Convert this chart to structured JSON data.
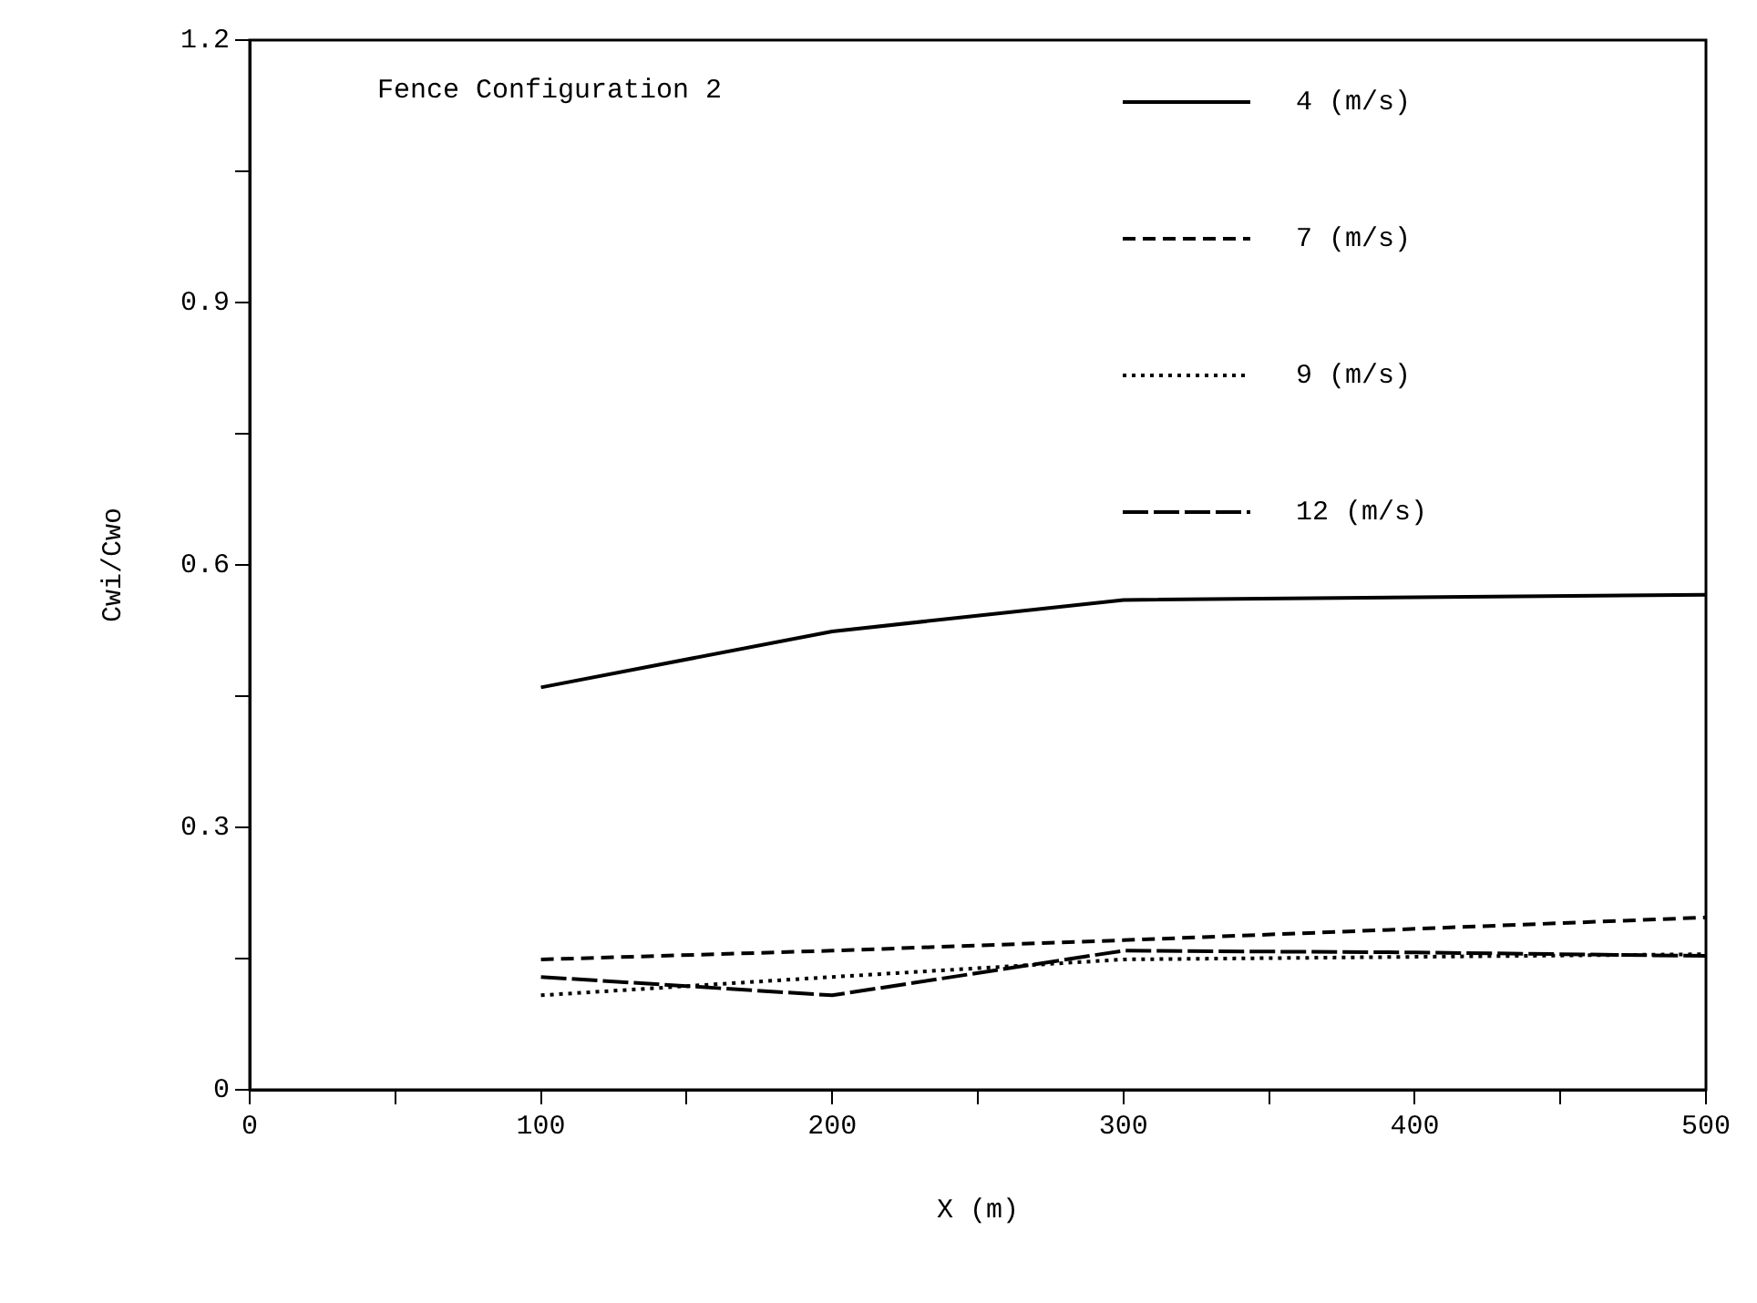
{
  "chart_data": {
    "type": "line",
    "xlabel": "X (m)",
    "ylabel": "Cwi/Cwo",
    "annotations": [
      "Fence Configuration 2"
    ],
    "x": [
      100,
      200,
      300,
      500
    ],
    "series": [
      {
        "name": "4 (m/s)",
        "color": "#000000",
        "line_style": "solid",
        "values": [
          0.46,
          0.524,
          0.56,
          0.566
        ]
      },
      {
        "name": "7 (m/s)",
        "color": "#000000",
        "line_style": "dashed",
        "values": [
          0.149,
          0.159,
          0.171,
          0.197
        ]
      },
      {
        "name": "9 (m/s)",
        "color": "#000000",
        "line_style": "dotted",
        "values": [
          0.108,
          0.129,
          0.149,
          0.155
        ]
      },
      {
        "name": "12 (m/s)",
        "color": "#000000",
        "line_style": "dashed",
        "x": [
          100,
          200,
          300,
          400,
          500
        ],
        "values": [
          0.129,
          0.108,
          0.159,
          0.157,
          0.153
        ]
      }
    ],
    "xlim": [
      0,
      500
    ],
    "xticks": [
      0,
      {
        "value": 50,
        "label": null
      },
      100,
      {
        "value": 150,
        "label": null
      },
      200,
      {
        "value": 250,
        "label": null
      },
      300,
      {
        "value": 350,
        "label": null
      },
      400,
      {
        "value": 450,
        "label": null
      },
      500
    ],
    "ylim": [
      0,
      1.2
    ],
    "yticks": [
      0,
      {
        "value": 0.15,
        "label": null
      },
      0.3,
      {
        "value": 0.45,
        "label": null
      },
      0.6,
      {
        "value": 0.75,
        "label": null
      },
      0.9,
      {
        "value": 1.05,
        "label": null
      },
      1.2
    ],
    "grid": false,
    "legend": "top right",
    "marker": "none"
  }
}
